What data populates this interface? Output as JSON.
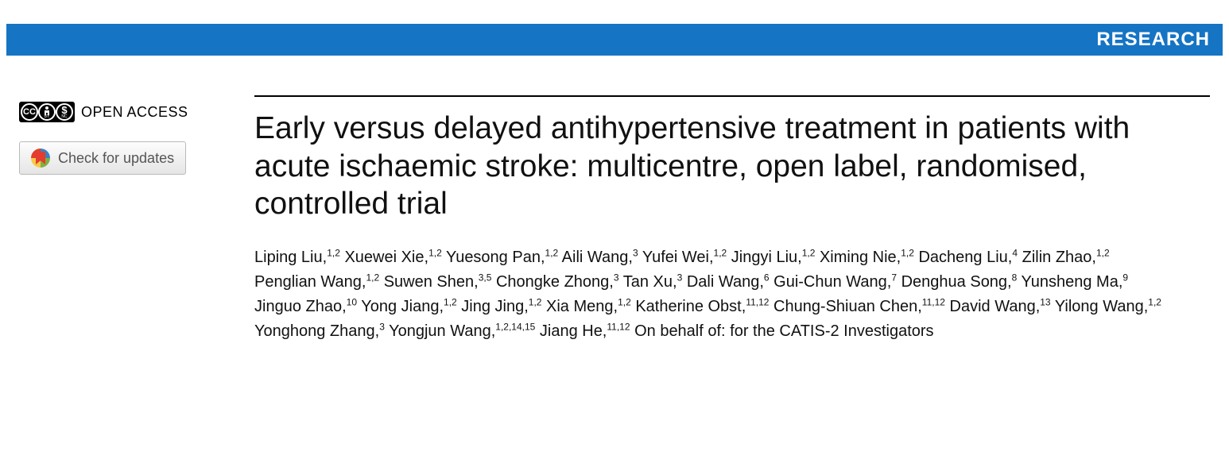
{
  "colors": {
    "top_bar_bg": "#1574c4",
    "top_bar_text": "#ffffff",
    "rule": "#000000",
    "body_bg": "#ffffff"
  },
  "header": {
    "section_label": "RESEARCH"
  },
  "sidebar": {
    "open_access_label": "OPEN ACCESS",
    "cc_label": "CC",
    "by_label": "BY",
    "nc_label": "NC",
    "updates_label": "Check for updates"
  },
  "article": {
    "title": "Early versus delayed antihypertensive treatment in patients with acute ischaemic stroke: multicentre, open label, randomised, controlled trial",
    "on_behalf": "On behalf of: for the CATIS-2 Investigators",
    "authors": [
      {
        "name": "Liping Liu",
        "aff": "1,2"
      },
      {
        "name": "Xuewei Xie",
        "aff": "1,2"
      },
      {
        "name": "Yuesong Pan",
        "aff": "1,2"
      },
      {
        "name": "Aili Wang",
        "aff": "3"
      },
      {
        "name": "Yufei Wei",
        "aff": "1,2"
      },
      {
        "name": "Jingyi Liu",
        "aff": "1,2"
      },
      {
        "name": "Ximing Nie",
        "aff": "1,2"
      },
      {
        "name": "Dacheng Liu",
        "aff": "4"
      },
      {
        "name": "Zilin Zhao",
        "aff": "1,2"
      },
      {
        "name": "Penglian Wang",
        "aff": "1,2"
      },
      {
        "name": "Suwen Shen",
        "aff": "3,5"
      },
      {
        "name": "Chongke Zhong",
        "aff": "3"
      },
      {
        "name": "Tan Xu",
        "aff": "3"
      },
      {
        "name": "Dali Wang",
        "aff": "6"
      },
      {
        "name": "Gui-Chun Wang",
        "aff": "7"
      },
      {
        "name": "Denghua Song",
        "aff": "8"
      },
      {
        "name": "Yunsheng Ma",
        "aff": "9"
      },
      {
        "name": "Jinguo Zhao",
        "aff": "10"
      },
      {
        "name": "Yong Jiang",
        "aff": "1,2"
      },
      {
        "name": "Jing Jing",
        "aff": "1,2"
      },
      {
        "name": "Xia Meng",
        "aff": "1,2"
      },
      {
        "name": "Katherine Obst",
        "aff": "11,12"
      },
      {
        "name": "Chung-Shiuan Chen",
        "aff": "11,12"
      },
      {
        "name": "David Wang",
        "aff": "13"
      },
      {
        "name": "Yilong Wang",
        "aff": "1,2"
      },
      {
        "name": "Yonghong Zhang",
        "aff": "3"
      },
      {
        "name": "Yongjun Wang",
        "aff": "1,2,14,15"
      },
      {
        "name": "Jiang He",
        "aff": "11,12"
      }
    ]
  }
}
